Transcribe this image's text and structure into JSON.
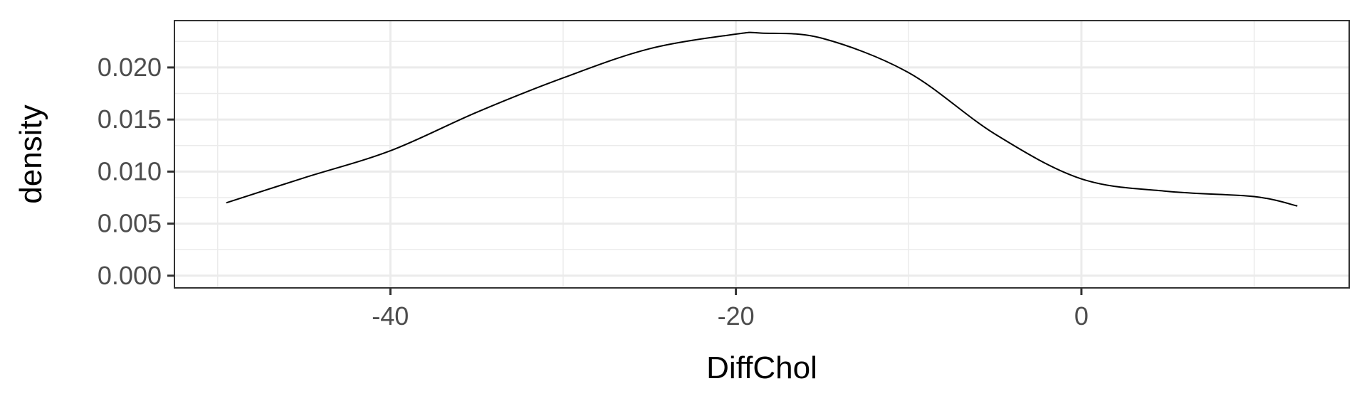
{
  "chart_data": {
    "type": "line",
    "title": "",
    "xlabel": "DiffChol",
    "ylabel": "density",
    "xlim": [
      -52.5,
      15.5
    ],
    "ylim": [
      -0.00117,
      0.0245
    ],
    "x_ticks": [
      -40,
      -20,
      0
    ],
    "x_tick_labels": [
      "-40",
      "-20",
      "0"
    ],
    "x_minor_ticks": [
      -50,
      -30,
      -10,
      10
    ],
    "y_ticks": [
      0.0,
      0.005,
      0.01,
      0.015,
      0.02
    ],
    "y_tick_labels": [
      "0.000",
      "0.005",
      "0.010",
      "0.015",
      "0.020"
    ],
    "y_minor_ticks": [
      0.0025,
      0.0075,
      0.0125,
      0.0175,
      0.0225
    ],
    "grid": true,
    "legend": "none",
    "series": [
      {
        "x": [
          -49.5,
          -45,
          -40,
          -35,
          -30,
          -25,
          -20,
          -18.5,
          -15,
          -10,
          -5,
          0,
          5,
          10,
          12.5
        ],
        "y": [
          0.007,
          0.0094,
          0.012,
          0.0157,
          0.019,
          0.0218,
          0.0232,
          0.0233,
          0.0228,
          0.0195,
          0.0136,
          0.0093,
          0.0081,
          0.0076,
          0.0067
        ]
      }
    ],
    "colors": {
      "line": "#000000",
      "grid": "#ebebeb",
      "border": "#333333",
      "tick_label": "#4d4d4d"
    }
  }
}
